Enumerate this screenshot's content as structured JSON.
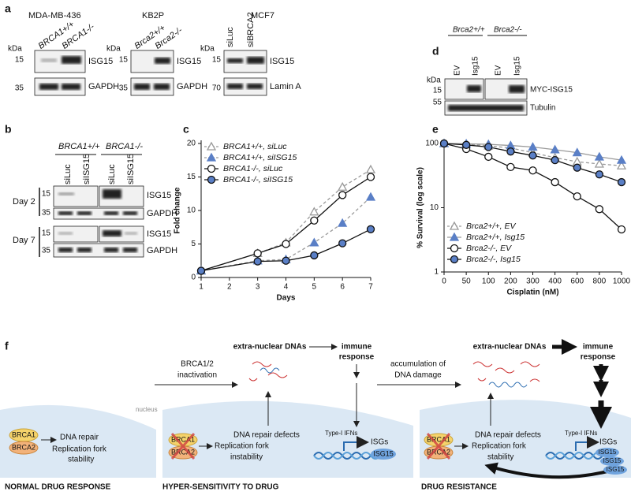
{
  "panel_labels": [
    "a",
    "b",
    "c",
    "d",
    "e",
    "f"
  ],
  "a": {
    "kda_unit": "kDa",
    "blots": [
      {
        "title": "MDA-MB-436",
        "lanes": [
          "BRCA1+/+",
          "BRCA1-/-"
        ],
        "rows": [
          {
            "kda": 15,
            "label": "ISG15"
          },
          {
            "kda": 35,
            "label": "GAPDH"
          }
        ]
      },
      {
        "title": "KB2P",
        "lanes": [
          "Brca2+/+",
          "Brca2-/-"
        ],
        "rows": [
          {
            "kda": 15,
            "label": "ISG15"
          },
          {
            "kda": 35,
            "label": "GAPDH"
          }
        ]
      },
      {
        "title": "MCF7",
        "lanes": [
          "siLuc",
          "siBRCA2"
        ],
        "rows": [
          {
            "kda": 15,
            "label": "ISG15"
          },
          {
            "kda": 70,
            "label": "Lamin A"
          }
        ]
      }
    ]
  },
  "b": {
    "groups": [
      "BRCA1+/+",
      "BRCA1-/-"
    ],
    "lanes": [
      "siLuc",
      "siISG15",
      "siLuc",
      "siISG15"
    ],
    "days": [
      {
        "label": "Day 2",
        "rows": [
          {
            "kda": 15,
            "label": "ISG15"
          },
          {
            "kda": 35,
            "label": "GAPDH"
          }
        ]
      },
      {
        "label": "Day 7",
        "rows": [
          {
            "kda": 15,
            "label": "ISG15"
          },
          {
            "kda": 35,
            "label": "GAPDH"
          }
        ]
      }
    ]
  },
  "d": {
    "kda_unit": "kDa",
    "groups": [
      "Brca2+/+",
      "Brca2-/-"
    ],
    "lanes": [
      "EV",
      "Isg15",
      "EV",
      "Isg15"
    ],
    "rows": [
      {
        "kda": 15,
        "label": "MYC-ISG15"
      },
      {
        "kda": 55,
        "label": "Tubulin"
      }
    ]
  },
  "chart_data": [
    {
      "type": "line",
      "xlabel": "Days",
      "ylabel": "Fold change",
      "x": [
        1,
        3,
        4,
        5,
        6,
        7
      ],
      "xlim": [
        1,
        7
      ],
      "xticks": [
        1,
        2,
        3,
        4,
        5,
        6,
        7
      ],
      "ylim": [
        0,
        20
      ],
      "yticks": [
        0,
        5,
        10,
        15,
        20
      ],
      "legend": "top-left",
      "series": [
        {
          "name": "BRCA1+/+, siLuc",
          "color": "#9a9a9a",
          "line_color": "#9a9a9a",
          "marker": "triangle",
          "marker_fill": "#ffffff",
          "dashed": true,
          "values": [
            1,
            3.6,
            5.2,
            9.8,
            13.5,
            16.1
          ]
        },
        {
          "name": "BRCA1+/+, siISG15",
          "color": "#5a7fc6",
          "line_color": "#9a9a9a",
          "marker": "triangle",
          "marker_fill": "#5a7fc6",
          "dashed": true,
          "values": [
            1,
            2.5,
            2.7,
            5.2,
            8.1,
            12.0
          ]
        },
        {
          "name": "BRCA1-/-, siLuc",
          "color": "#111111",
          "line_color": "#111111",
          "marker": "circle",
          "marker_fill": "#ffffff",
          "dashed": false,
          "values": [
            1,
            3.6,
            5.0,
            8.5,
            12.3,
            15.0
          ]
        },
        {
          "name": "BRCA1-/-, siISG15",
          "color": "#5a7fc6",
          "line_color": "#111111",
          "marker": "circle",
          "marker_fill": "#5a7fc6",
          "dashed": false,
          "values": [
            1,
            2.4,
            2.5,
            3.3,
            5.1,
            7.2
          ]
        }
      ]
    },
    {
      "type": "line",
      "xlabel": "Cisplatin (nM)",
      "ylabel": "% Survival (log scale)",
      "categories": [
        0,
        50,
        100,
        200,
        300,
        400,
        600,
        800,
        1000
      ],
      "ylim": [
        1,
        100
      ],
      "yticks": [
        1,
        10,
        100
      ],
      "log_scale": true,
      "legend": "bottom-left",
      "series": [
        {
          "name": "Brca2+/+, EV",
          "color": "#9a9a9a",
          "line_color": "#9a9a9a",
          "marker": "triangle",
          "marker_fill": "#ffffff",
          "dashed": true,
          "values": [
            100,
            98,
            92,
            85,
            72,
            60,
            52,
            48,
            45
          ]
        },
        {
          "name": "Brca2+/+, Isg15",
          "color": "#5a7fc6",
          "line_color": "#9a9a9a",
          "marker": "triangle",
          "marker_fill": "#5a7fc6",
          "dashed": false,
          "values": [
            100,
            99,
            97,
            93,
            88,
            80,
            72,
            62,
            55
          ]
        },
        {
          "name": "Brca2-/-, EV",
          "color": "#111111",
          "line_color": "#111111",
          "marker": "circle",
          "marker_fill": "#ffffff",
          "dashed": false,
          "values": [
            100,
            82,
            62,
            43,
            38,
            25,
            15,
            9.5,
            4.6
          ]
        },
        {
          "name": "Brca2-/-, Isg15",
          "color": "#5a7fc6",
          "line_color": "#111111",
          "marker": "circle",
          "marker_fill": "#5a7fc6",
          "dashed": false,
          "values": [
            100,
            95,
            88,
            75,
            65,
            55,
            42,
            33,
            25
          ]
        }
      ]
    }
  ],
  "f": {
    "inactivation": [
      "BRCA1/2",
      "inactivation"
    ],
    "accumulation": [
      "accumulation of",
      "DNA damage"
    ],
    "extra_dna": "extra-nuclear DNAs",
    "immune": [
      "immune",
      "response"
    ],
    "nucleus": "nucleus",
    "brca1": "BRCA1",
    "brca2": "BRCA2",
    "dna_repair": "DNA repair",
    "fork_stability": [
      "Replication fork",
      "stability"
    ],
    "repair_defects": "DNA repair defects",
    "fork_instability": [
      "Replication fork",
      "instability"
    ],
    "ifns": "Type-I IFNs",
    "isgs": "ISGs",
    "isg15": "ISG15",
    "states": [
      "NORMAL DRUG RESPONSE",
      "HYPER-SENSITIVITY TO DRUG",
      "DRUG RESISTANCE"
    ]
  }
}
